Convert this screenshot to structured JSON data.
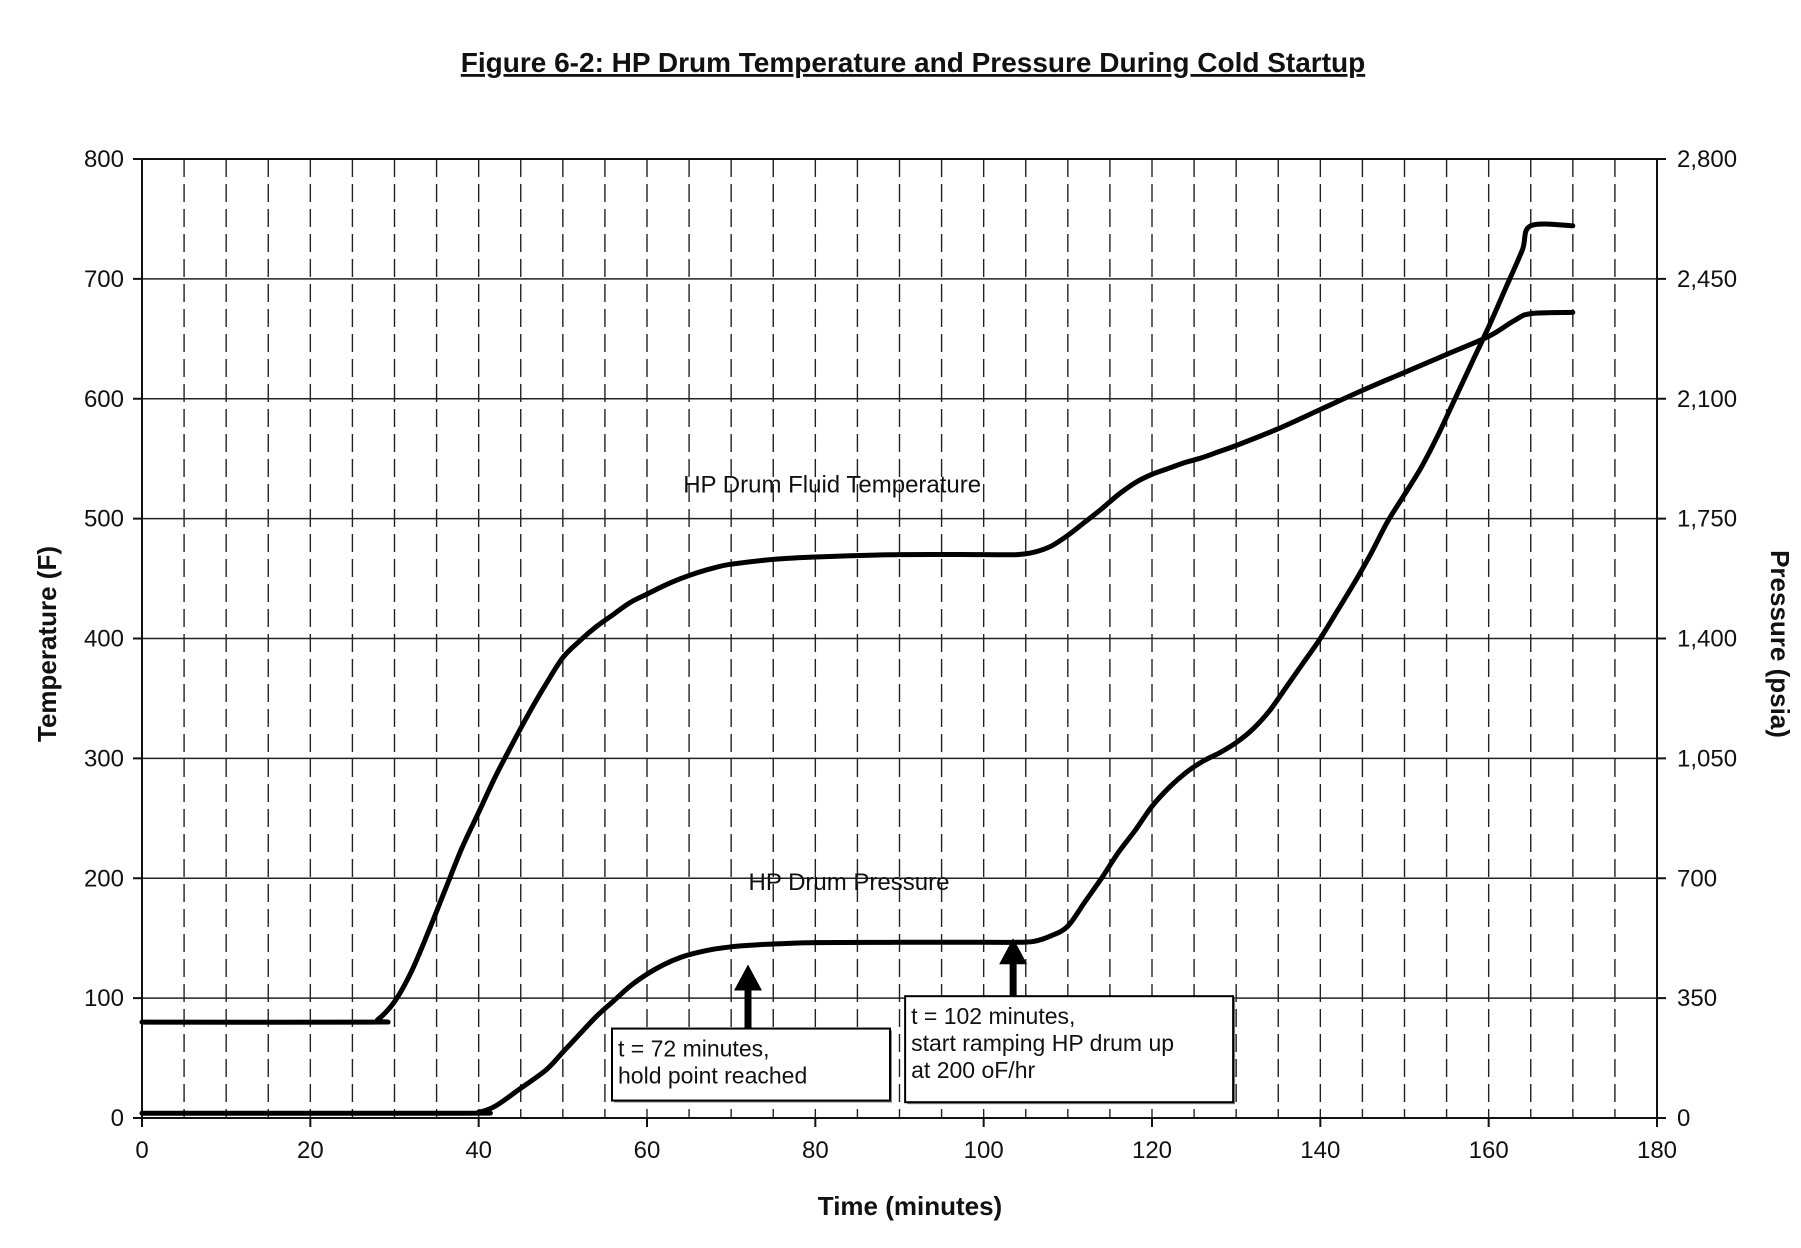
{
  "chart_data": {
    "type": "line",
    "title": "Figure 6-2: HP Drum Temperature and Pressure During Cold Startup",
    "xlabel": "Time (minutes)",
    "ylabel": "Temperature (F)",
    "y2label": "Pressure (psia)",
    "xlim": [
      0,
      180
    ],
    "ylim": [
      0,
      800
    ],
    "y2lim": [
      0,
      2800
    ],
    "x_ticks": [
      "0",
      "20",
      "40",
      "60",
      "80",
      "100",
      "120",
      "140",
      "160",
      "180"
    ],
    "y_ticks": [
      "0",
      "100",
      "200",
      "300",
      "400",
      "500",
      "600",
      "700",
      "800"
    ],
    "y2_ticks": [
      "0",
      "350",
      "700",
      "1,050",
      "1,400",
      "1,750",
      "2,100",
      "2,450",
      "2,800"
    ],
    "grid": true,
    "series": [
      {
        "name": "HP Drum Fluid Temperature",
        "axis": "left",
        "x": [
          0,
          27,
          28,
          30,
          32,
          34,
          36,
          38,
          40,
          42,
          44,
          46,
          48,
          50,
          52,
          54,
          56,
          58,
          60,
          62,
          64,
          66,
          68,
          70,
          75,
          80,
          90,
          100,
          104,
          106,
          108,
          110,
          112,
          114,
          116,
          118,
          120,
          122,
          124,
          126,
          128,
          130,
          135,
          140,
          145,
          150,
          155,
          160,
          163,
          165,
          170
        ],
        "y": [
          80,
          80,
          82,
          97,
          122,
          155,
          190,
          225,
          255,
          285,
          312,
          338,
          362,
          384,
          398,
          410,
          420,
          430,
          437,
          444,
          450,
          455,
          459,
          462,
          466,
          468,
          470,
          470,
          470,
          472,
          477,
          486,
          497,
          508,
          520,
          530,
          537,
          542,
          547,
          551,
          556,
          561,
          575,
          591,
          607,
          622,
          637,
          652,
          665,
          671,
          672
        ]
      },
      {
        "name": "HP Drum Pressure",
        "axis": "right",
        "x": [
          0,
          38,
          40,
          42,
          45,
          48,
          50,
          52,
          54,
          56,
          58,
          60,
          62,
          64,
          66,
          68,
          70,
          72,
          74,
          76,
          80,
          90,
          100,
          104,
          106,
          108,
          110,
          112,
          114,
          116,
          118,
          120,
          122,
          124,
          126,
          128,
          130,
          132,
          134,
          136,
          138,
          140,
          142,
          144,
          146,
          148,
          150,
          152,
          154,
          156,
          158,
          160,
          162,
          164,
          165,
          170
        ],
        "y": [
          14,
          14,
          17,
          35,
          87,
          140,
          192,
          245,
          297,
          341,
          385,
          420,
          448,
          469,
          483,
          493,
          500,
          504,
          507,
          509,
          512,
          513,
          513,
          513,
          516,
          532,
          560,
          630,
          700,
          775,
          840,
          910,
          964,
          1008,
          1041,
          1066,
          1096,
          1136,
          1190,
          1260,
          1330,
          1400,
          1480,
          1561,
          1647,
          1742,
          1820,
          1900,
          1995,
          2100,
          2205,
          2310,
          2422,
          2534,
          2605,
          2605
        ]
      }
    ],
    "annotations": [
      {
        "text": "HP Drum Fluid Temperature",
        "x": 82,
        "y": 522
      },
      {
        "text": "HP Drum Pressure",
        "x": 84,
        "y": 190
      },
      {
        "text_lines": [
          "t = 72 minutes,",
          "hold point reached"
        ],
        "arrow_x": 72,
        "arrow_y": 128
      },
      {
        "text_lines": [
          "t = 102 minutes,",
          "start ramping HP drum up",
          "at 200 oF/hr"
        ],
        "arrow_x": 103.5,
        "arrow_y": 150
      }
    ]
  }
}
